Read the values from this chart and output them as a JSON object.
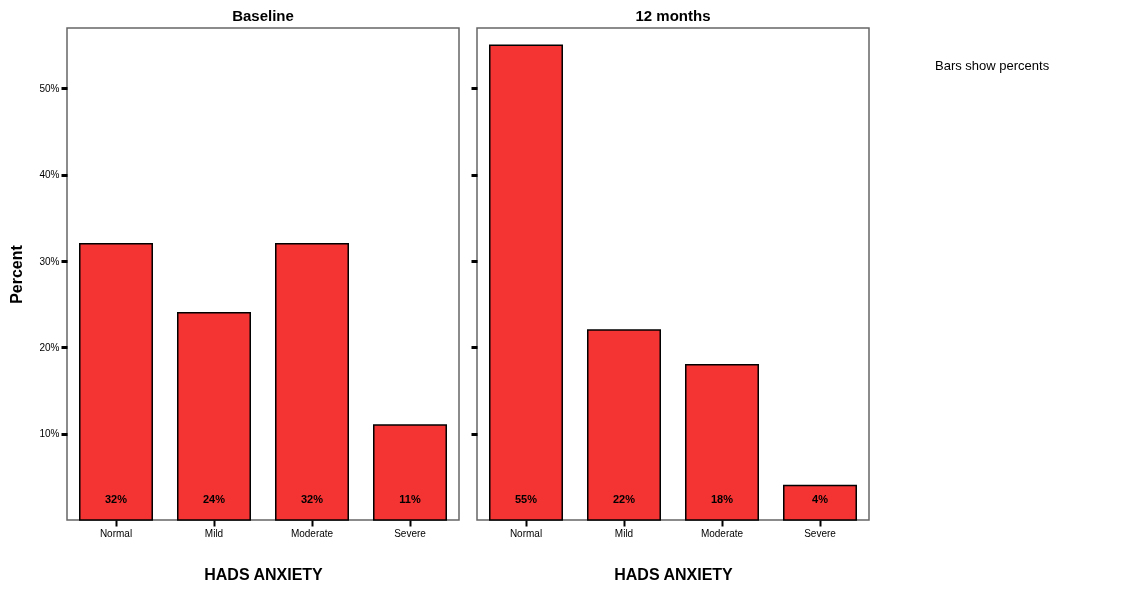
{
  "chart_data": [
    {
      "type": "bar",
      "title": "Baseline",
      "xlabel": "HADS ANXIETY",
      "ylabel": "Percent",
      "categories": [
        "Normal",
        "Mild",
        "Moderate",
        "Severe"
      ],
      "values": [
        32,
        24,
        32,
        11
      ],
      "value_labels": [
        "32%",
        "24%",
        "32%",
        "11%"
      ],
      "color": "#f43333",
      "ylim": [
        0,
        57
      ],
      "yticks": [
        {
          "value": 10,
          "label": "10%"
        },
        {
          "value": 20,
          "label": "20%"
        },
        {
          "value": 30,
          "label": "30%"
        },
        {
          "value": 40,
          "label": "40%"
        },
        {
          "value": 50,
          "label": "50%"
        }
      ],
      "grid": false
    },
    {
      "type": "bar",
      "title": "12 months",
      "xlabel": "HADS ANXIETY",
      "categories": [
        "Normal",
        "Mild",
        "Moderate",
        "Severe"
      ],
      "values": [
        55,
        22,
        18,
        4
      ],
      "value_labels": [
        "55%",
        "22%",
        "18%",
        "4%"
      ],
      "color": "#f43333",
      "ylim": [
        0,
        57
      ],
      "yticks": [
        {
          "value": 10,
          "label": null
        },
        {
          "value": 20,
          "label": null
        },
        {
          "value": 30,
          "label": null
        },
        {
          "value": 40,
          "label": null
        },
        {
          "value": 50,
          "label": null
        }
      ],
      "grid": false,
      "tick_labels": "x",
      "annotations": [
        "Bars show percents"
      ]
    }
  ]
}
